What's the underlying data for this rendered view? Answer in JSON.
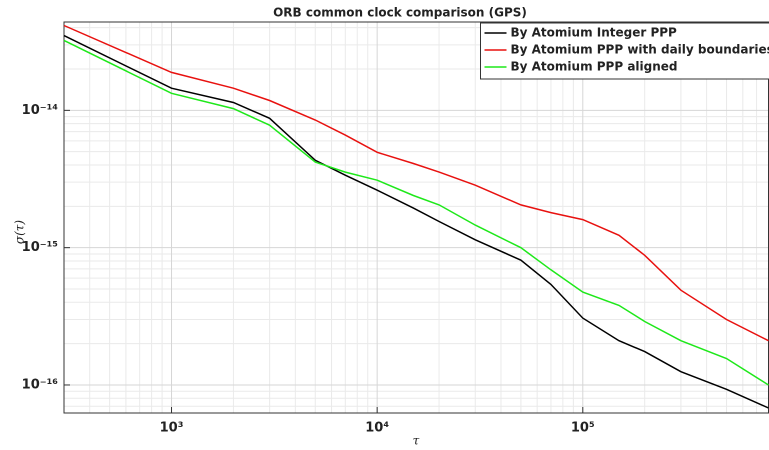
{
  "chart_data": {
    "type": "line",
    "title": "ORB common clock comparison (GPS)",
    "xlabel": "τ",
    "ylabel": "σ(τ)",
    "xscale": "log",
    "yscale": "log",
    "grid": true,
    "minor_grid": true,
    "legend": "northeast",
    "xlim": [
      300,
      800000
    ],
    "ylim": [
      6.25e-17,
      4.4e-14
    ],
    "xticks": [
      {
        "value": 1000,
        "label": "10³"
      },
      {
        "value": 10000,
        "label": "10⁴"
      },
      {
        "value": 100000,
        "label": "10⁵"
      }
    ],
    "yticks": [
      {
        "value": 1e-16,
        "label": "10⁻¹⁶"
      },
      {
        "value": 1e-15,
        "label": "10⁻¹⁵"
      },
      {
        "value": 1e-14,
        "label": "10⁻¹⁴"
      }
    ],
    "xminor": [
      400,
      500,
      600,
      700,
      800,
      900,
      2000,
      3000,
      4000,
      5000,
      6000,
      7000,
      8000,
      9000,
      20000,
      30000,
      40000,
      50000,
      60000,
      70000,
      80000,
      90000,
      200000,
      300000,
      400000,
      500000,
      600000,
      700000,
      800000
    ],
    "yminor": [
      7e-17,
      8e-17,
      9e-17,
      2e-16,
      3e-16,
      4e-16,
      5e-16,
      6e-16,
      7e-16,
      8e-16,
      9e-16,
      2e-15,
      3e-15,
      4e-15,
      5e-15,
      6e-15,
      7e-15,
      8e-15,
      9e-15,
      2e-14,
      3e-14,
      4e-14
    ],
    "x": [
      300,
      1000,
      2000,
      3000,
      5000,
      7000,
      10000,
      15000,
      20000,
      30000,
      50000,
      70000,
      100000,
      150000,
      200000,
      300000,
      500000,
      800000
    ],
    "series": [
      {
        "name": "By Atomium Integer PPP",
        "color": "#000000",
        "values": [
          3.5e-14,
          1.45e-14,
          1.14e-14,
          8.75e-15,
          4.33e-15,
          3.37e-15,
          2.62e-15,
          1.94e-15,
          1.55e-15,
          1.14e-15,
          8.1e-16,
          5.4e-16,
          3.07e-16,
          2.1e-16,
          1.75e-16,
          1.25e-16,
          9.3e-17,
          6.8e-17
        ]
      },
      {
        "name": "By Atomium PPP with daily boundaries",
        "color": "#e8110f",
        "values": [
          4.15e-14,
          1.89e-14,
          1.45e-14,
          1.18e-14,
          8.5e-15,
          6.6e-15,
          4.95e-15,
          4.1e-15,
          3.55e-15,
          2.85e-15,
          2.05e-15,
          1.8e-15,
          1.6e-15,
          1.23e-15,
          8.8e-16,
          4.9e-16,
          3e-16,
          2.1e-16
        ]
      },
      {
        "name": "By Atomium PPP aligned",
        "color": "#1ee81a",
        "values": [
          3.23e-14,
          1.33e-14,
          1.03e-14,
          7.8e-15,
          4.2e-15,
          3.55e-15,
          3.1e-15,
          2.4e-15,
          2.05e-15,
          1.46e-15,
          1e-15,
          6.9e-16,
          4.75e-16,
          3.8e-16,
          2.9e-16,
          2.1e-16,
          1.56e-16,
          1e-16
        ]
      }
    ]
  }
}
